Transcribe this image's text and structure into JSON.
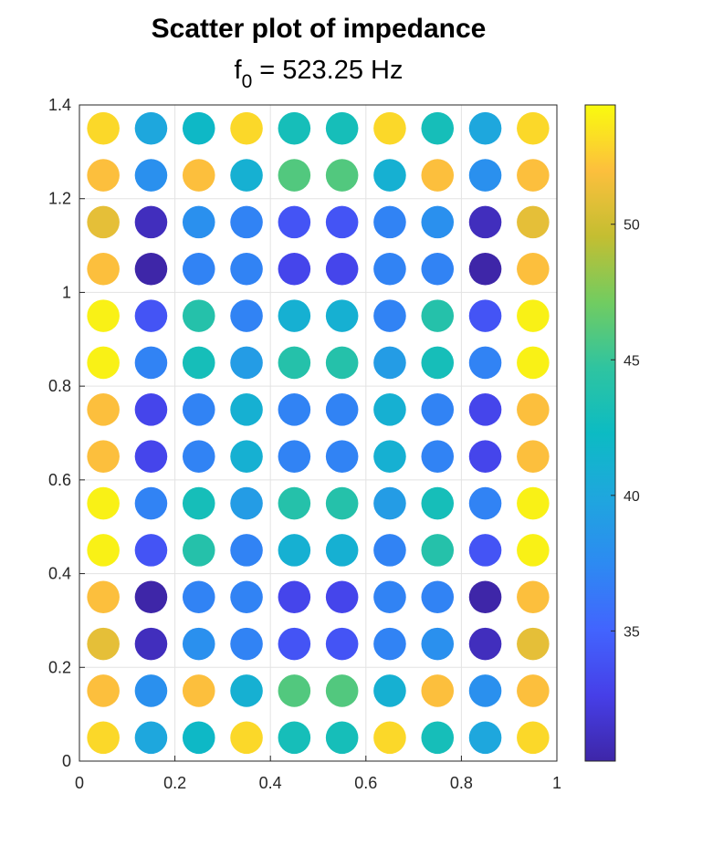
{
  "chart_data": {
    "type": "scatter",
    "title": "Scatter plot of impedance",
    "subtitle": {
      "prefix": "f",
      "subscript": "0",
      "suffix": " = 523.25 Hz"
    },
    "xlim": [
      0,
      1
    ],
    "ylim": [
      0,
      1.4
    ],
    "xticks": [
      0,
      0.2,
      0.4,
      0.6,
      0.8,
      1
    ],
    "xtick_labels": [
      "0",
      "0.2",
      "0.4",
      "0.6",
      "0.8",
      "1"
    ],
    "yticks": [
      0,
      0.2,
      0.4,
      0.6,
      0.8,
      1,
      1.2,
      1.4
    ],
    "ytick_labels": [
      "0",
      "0.2",
      "0.4",
      "0.6",
      "0.8",
      "1",
      "1.2",
      "1.4"
    ],
    "grid": true,
    "x": [
      0.05,
      0.15,
      0.25,
      0.35,
      0.45,
      0.55,
      0.65,
      0.75,
      0.85,
      0.95
    ],
    "y": [
      0.05,
      0.15,
      0.25,
      0.35,
      0.45,
      0.55,
      0.65,
      0.75,
      0.85,
      0.95,
      1.05,
      1.15,
      1.25,
      1.35
    ],
    "values": [
      [
        53,
        40,
        42,
        53,
        43,
        43,
        53,
        43,
        40,
        53
      ],
      [
        52,
        38,
        52,
        41,
        46,
        46,
        41,
        52,
        38,
        52
      ],
      [
        51,
        31,
        38,
        37,
        34,
        34,
        37,
        38,
        31,
        51
      ],
      [
        52,
        30,
        37,
        37,
        33,
        33,
        37,
        37,
        30,
        52
      ],
      [
        54,
        34,
        44,
        37,
        41,
        41,
        37,
        44,
        34,
        54
      ],
      [
        54,
        37,
        43,
        39,
        44,
        44,
        39,
        43,
        37,
        54
      ],
      [
        52,
        33,
        37,
        41,
        37,
        37,
        41,
        37,
        33,
        52
      ],
      [
        52,
        33,
        37,
        41,
        37,
        37,
        41,
        37,
        33,
        52
      ],
      [
        54,
        37,
        43,
        39,
        44,
        44,
        39,
        43,
        37,
        54
      ],
      [
        54,
        34,
        44,
        37,
        41,
        41,
        37,
        44,
        34,
        54
      ],
      [
        52,
        30,
        37,
        37,
        33,
        33,
        37,
        37,
        30,
        52
      ],
      [
        51,
        31,
        38,
        37,
        34,
        34,
        37,
        38,
        31,
        51
      ],
      [
        52,
        38,
        52,
        41,
        46,
        46,
        41,
        52,
        38,
        52
      ],
      [
        53,
        40,
        42,
        53,
        43,
        43,
        53,
        43,
        40,
        53
      ]
    ],
    "colorbar": {
      "colormap": "parula",
      "clim": [
        30.2,
        54.4
      ],
      "ticks": [
        35,
        40,
        45,
        50
      ],
      "tick_labels": [
        "35",
        "40",
        "45",
        "50"
      ]
    }
  }
}
